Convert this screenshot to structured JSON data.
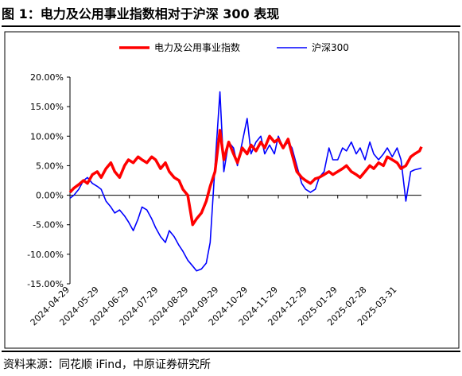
{
  "figure": {
    "title": "图 1：电力及公用事业指数相对于沪深 300 表现",
    "source": "资料来源：同花顺 iFind，中原证券研究所"
  },
  "chart_data": {
    "type": "line",
    "title": "",
    "xlabel": "",
    "ylabel": "",
    "ylim": [
      -0.15,
      0.2
    ],
    "y_ticks": [
      -0.15,
      -0.1,
      -0.05,
      0.0,
      0.05,
      0.1,
      0.15,
      0.2
    ],
    "y_tick_labels": [
      "-15.00%",
      "-10.00%",
      "-5.00%",
      "0.00%",
      "5.00%",
      "10.00%",
      "15.00%",
      "20.00%"
    ],
    "x_tick_labels": [
      "2024-04-29",
      "2024-05-29",
      "2024-06-29",
      "2024-07-29",
      "2024-08-29",
      "2024-09-29",
      "2024-10-29",
      "2024-11-29",
      "2024-12-29",
      "2025-01-29",
      "2025-02-28",
      "2025-03-31"
    ],
    "x_range": [
      "2024-04-29",
      "2025-04-25"
    ],
    "grid": false,
    "legend_position": "top",
    "series": [
      {
        "name": "电力及公用事业指数",
        "color": "#ff0000",
        "x": [
          "2024-04-29",
          "2024-05-03",
          "2024-05-08",
          "2024-05-13",
          "2024-05-17",
          "2024-05-22",
          "2024-05-27",
          "2024-05-31",
          "2024-06-05",
          "2024-06-10",
          "2024-06-14",
          "2024-06-19",
          "2024-06-24",
          "2024-06-28",
          "2024-07-03",
          "2024-07-08",
          "2024-07-12",
          "2024-07-17",
          "2024-07-22",
          "2024-07-26",
          "2024-07-31",
          "2024-08-05",
          "2024-08-09",
          "2024-08-14",
          "2024-08-19",
          "2024-08-23",
          "2024-08-28",
          "2024-09-02",
          "2024-09-06",
          "2024-09-11",
          "2024-09-16",
          "2024-09-20",
          "2024-09-25",
          "2024-09-30",
          "2024-10-04",
          "2024-10-09",
          "2024-10-14",
          "2024-10-18",
          "2024-10-23",
          "2024-10-28",
          "2024-11-01",
          "2024-11-06",
          "2024-11-11",
          "2024-11-15",
          "2024-11-20",
          "2024-11-25",
          "2024-11-29",
          "2024-12-04",
          "2024-12-09",
          "2024-12-13",
          "2024-12-18",
          "2024-12-23",
          "2024-12-27",
          "2025-01-01",
          "2025-01-06",
          "2025-01-10",
          "2025-01-15",
          "2025-01-20",
          "2025-01-24",
          "2025-01-29",
          "2025-02-03",
          "2025-02-07",
          "2025-02-12",
          "2025-02-17",
          "2025-02-21",
          "2025-02-26",
          "2025-03-03",
          "2025-03-07",
          "2025-03-12",
          "2025-03-17",
          "2025-03-21",
          "2025-03-26",
          "2025-03-31",
          "2025-04-04",
          "2025-04-09",
          "2025-04-14",
          "2025-04-18",
          "2025-04-23",
          "2025-04-25"
        ],
        "y": [
          0.005,
          0.012,
          0.018,
          0.025,
          0.02,
          0.035,
          0.04,
          0.03,
          0.045,
          0.055,
          0.04,
          0.03,
          0.05,
          0.06,
          0.055,
          0.065,
          0.06,
          0.055,
          0.065,
          0.06,
          0.045,
          0.055,
          0.04,
          0.03,
          0.025,
          0.01,
          0.0,
          -0.05,
          -0.04,
          -0.03,
          -0.01,
          0.015,
          0.04,
          0.11,
          0.06,
          0.09,
          0.07,
          0.055,
          0.08,
          0.07,
          0.085,
          0.075,
          0.09,
          0.08,
          0.1,
          0.09,
          0.095,
          0.08,
          0.095,
          0.07,
          0.04,
          0.03,
          0.025,
          0.02,
          0.028,
          0.03,
          0.035,
          0.04,
          0.035,
          0.04,
          0.045,
          0.05,
          0.04,
          0.035,
          0.03,
          0.04,
          0.05,
          0.045,
          0.055,
          0.05,
          0.065,
          0.06,
          0.055,
          0.045,
          0.05,
          0.065,
          0.07,
          0.075,
          0.082
        ]
      },
      {
        "name": "沪深300",
        "color": "#0000ff",
        "x": [
          "2024-04-29",
          "2024-05-03",
          "2024-05-08",
          "2024-05-13",
          "2024-05-17",
          "2024-05-22",
          "2024-05-27",
          "2024-05-31",
          "2024-06-05",
          "2024-06-10",
          "2024-06-14",
          "2024-06-19",
          "2024-06-24",
          "2024-06-28",
          "2024-07-03",
          "2024-07-08",
          "2024-07-12",
          "2024-07-17",
          "2024-07-22",
          "2024-07-26",
          "2024-07-31",
          "2024-08-05",
          "2024-08-09",
          "2024-08-14",
          "2024-08-19",
          "2024-08-23",
          "2024-08-28",
          "2024-09-02",
          "2024-09-06",
          "2024-09-11",
          "2024-09-16",
          "2024-09-20",
          "2024-09-25",
          "2024-09-30",
          "2024-10-04",
          "2024-10-09",
          "2024-10-14",
          "2024-10-18",
          "2024-10-23",
          "2024-10-28",
          "2024-11-01",
          "2024-11-06",
          "2024-11-11",
          "2024-11-15",
          "2024-11-20",
          "2024-11-25",
          "2024-11-29",
          "2024-12-04",
          "2024-12-09",
          "2024-12-13",
          "2024-12-18",
          "2024-12-23",
          "2024-12-27",
          "2025-01-01",
          "2025-01-06",
          "2025-01-10",
          "2025-01-15",
          "2025-01-20",
          "2025-01-24",
          "2025-01-29",
          "2025-02-03",
          "2025-02-07",
          "2025-02-12",
          "2025-02-17",
          "2025-02-21",
          "2025-02-26",
          "2025-03-03",
          "2025-03-07",
          "2025-03-12",
          "2025-03-17",
          "2025-03-21",
          "2025-03-26",
          "2025-03-31",
          "2025-04-04",
          "2025-04-09",
          "2025-04-14",
          "2025-04-18",
          "2025-04-23",
          "2025-04-25"
        ],
        "y": [
          -0.005,
          0.0,
          0.01,
          0.025,
          0.03,
          0.02,
          0.015,
          0.01,
          -0.01,
          -0.02,
          -0.03,
          -0.025,
          -0.035,
          -0.045,
          -0.06,
          -0.04,
          -0.02,
          -0.025,
          -0.04,
          -0.055,
          -0.07,
          -0.08,
          -0.06,
          -0.07,
          -0.085,
          -0.095,
          -0.11,
          -0.12,
          -0.128,
          -0.125,
          -0.115,
          -0.08,
          0.05,
          0.175,
          0.04,
          0.09,
          0.08,
          0.05,
          0.09,
          0.13,
          0.07,
          0.09,
          0.1,
          0.07,
          0.085,
          0.07,
          0.1,
          0.08,
          0.09,
          0.08,
          0.05,
          0.02,
          0.01,
          0.005,
          0.01,
          0.03,
          0.04,
          0.08,
          0.06,
          0.06,
          0.08,
          0.075,
          0.09,
          0.07,
          0.08,
          0.06,
          0.09,
          0.07,
          0.06,
          0.07,
          0.08,
          0.065,
          0.08,
          0.06,
          -0.01,
          0.04,
          0.043,
          0.045,
          0.046
        ]
      }
    ]
  }
}
